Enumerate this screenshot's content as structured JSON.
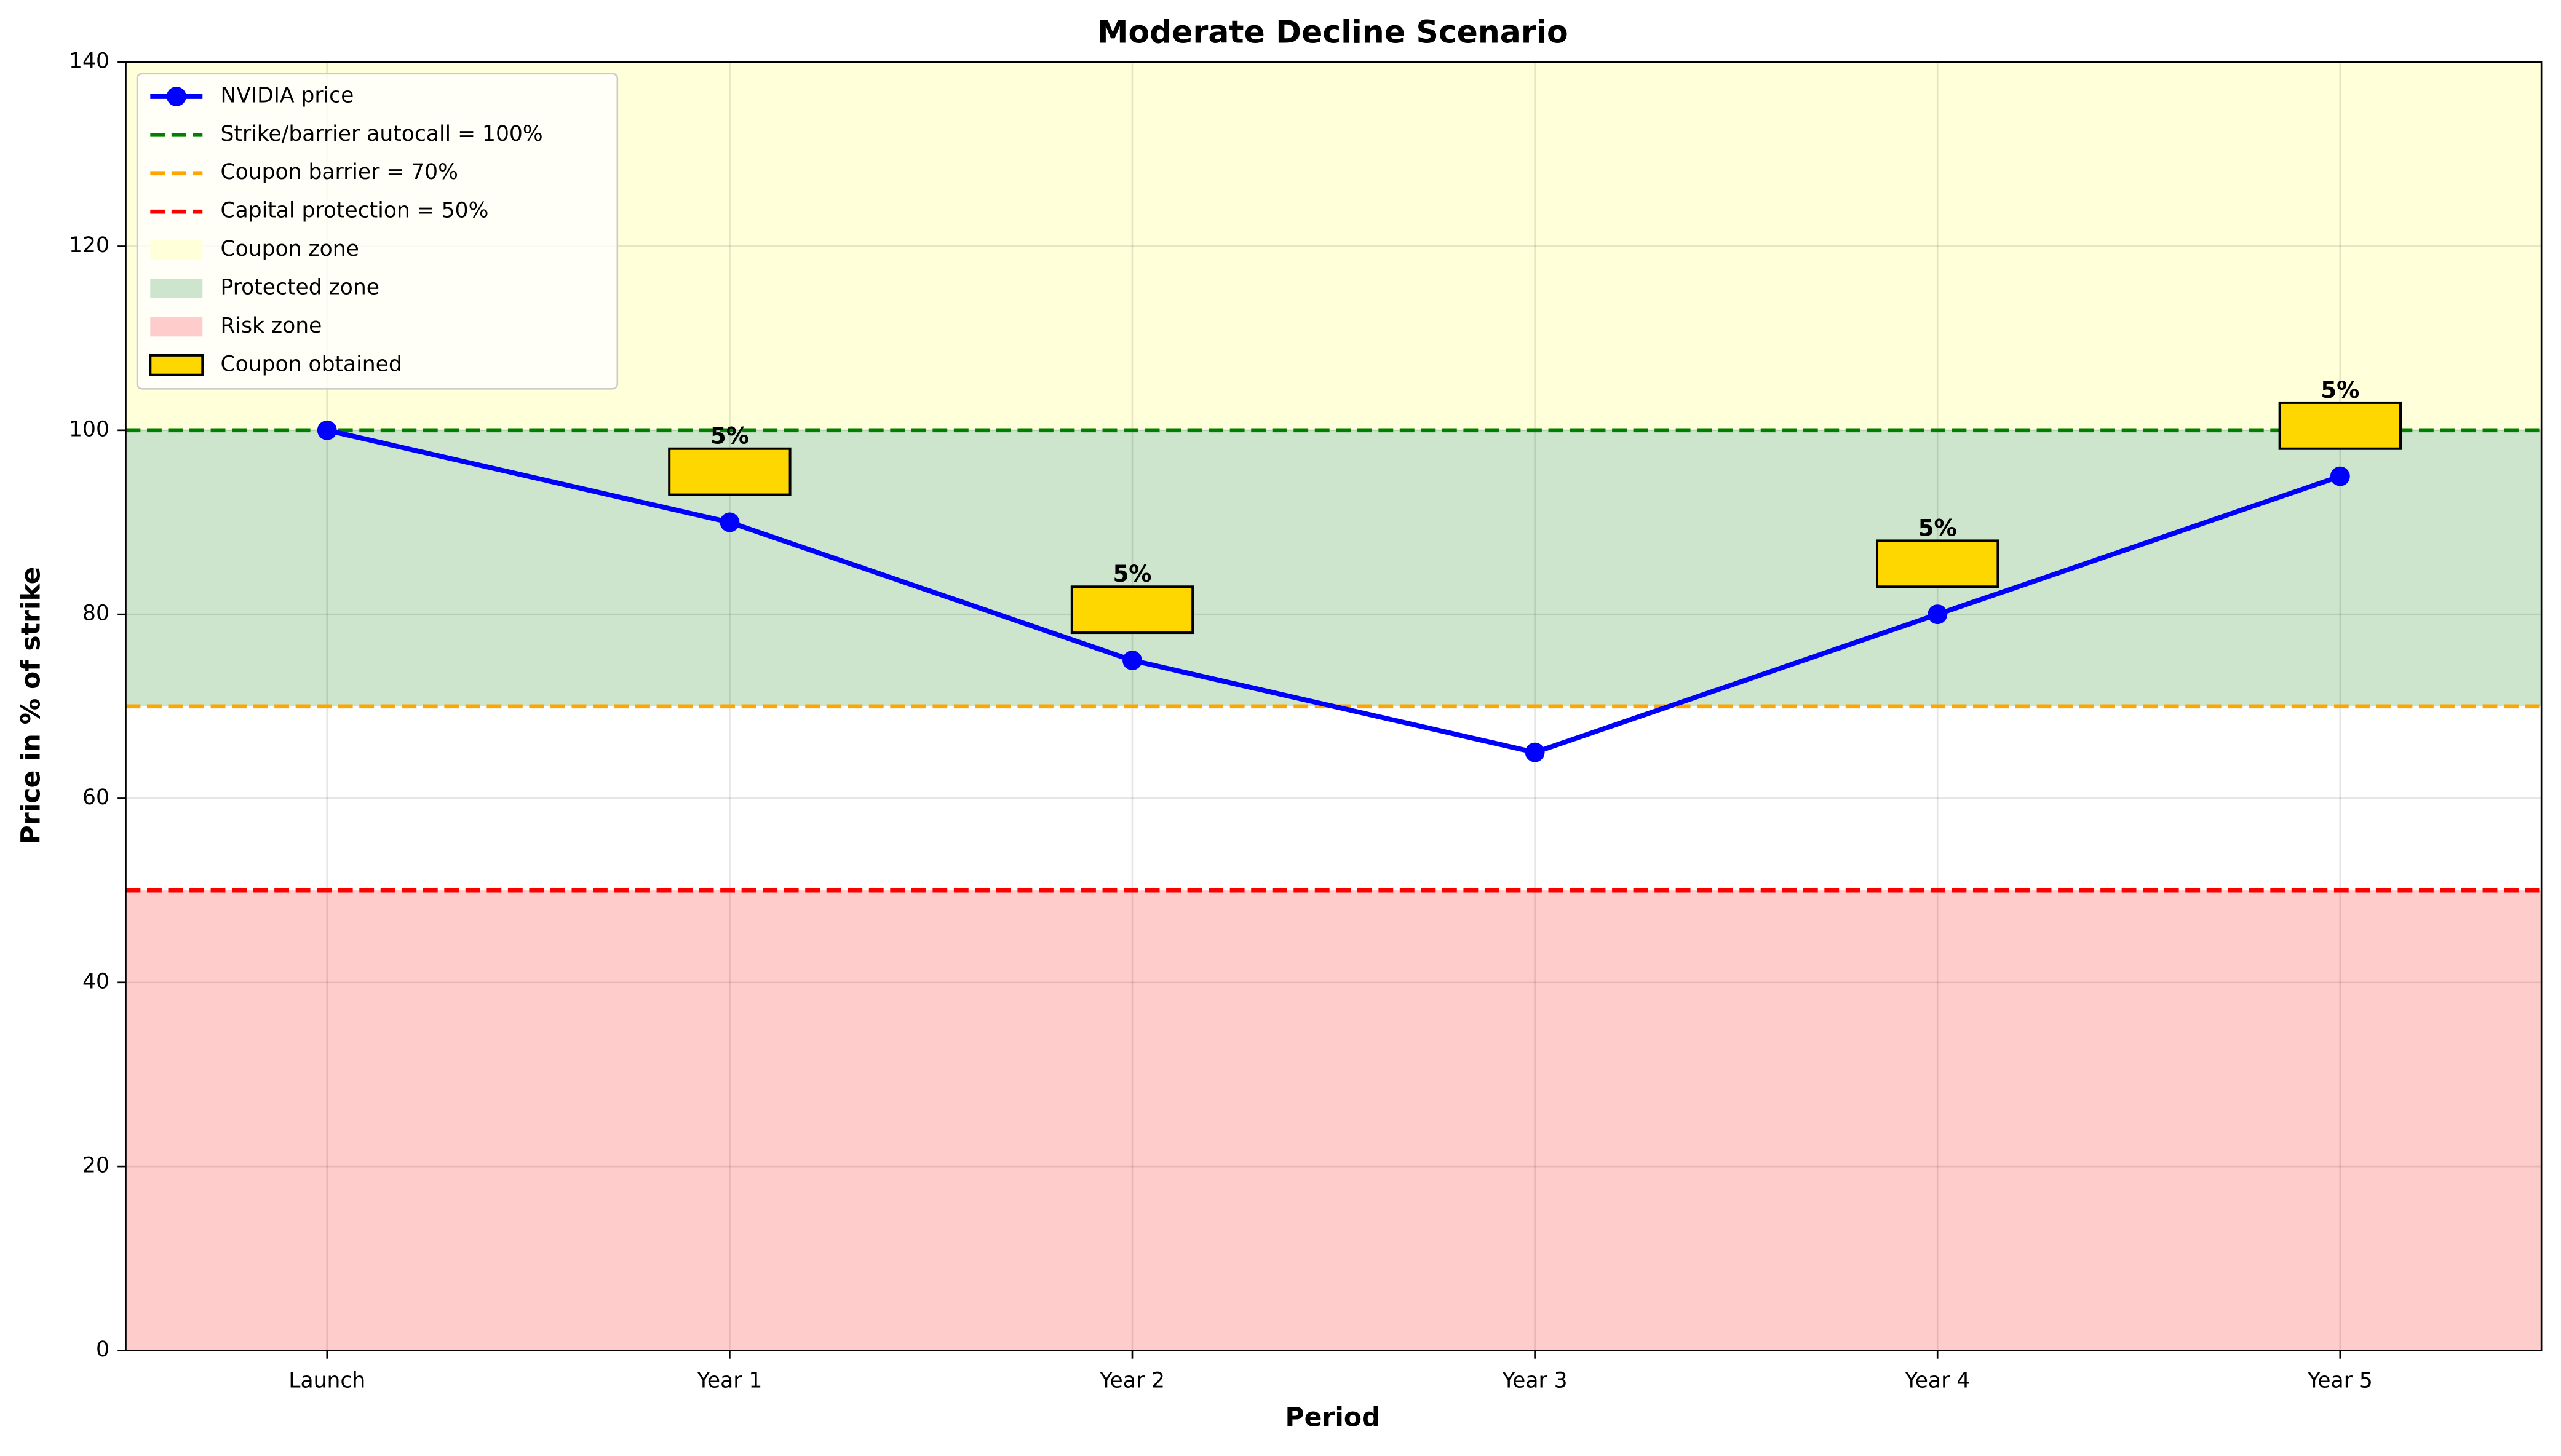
{
  "chart_data": {
    "type": "line",
    "title": "Moderate Decline Scenario",
    "x_label": "Period",
    "y_label": "Price in % of strike",
    "categories": [
      "Launch",
      "Year 1",
      "Year 2",
      "Year 3",
      "Year 4",
      "Year 5"
    ],
    "series": [
      {
        "name": "NVIDIA price",
        "color": "#0000ff",
        "values": [
          100,
          90,
          75,
          65,
          80,
          95
        ]
      }
    ],
    "coupons": {
      "name": "Coupon obtained",
      "color": "#ffd700",
      "values": [
        null,
        5,
        5,
        null,
        5,
        5
      ],
      "value_labels": [
        null,
        "5%",
        "5%",
        null,
        "5%",
        "5%"
      ]
    },
    "reference_lines": [
      {
        "name": "Strike/barrier autocall = 100%",
        "value": 100,
        "color": "#008000"
      },
      {
        "name": "Coupon barrier = 70%",
        "value": 70,
        "color": "#ffa500"
      },
      {
        "name": "Capital protection = 50%",
        "value": 50,
        "color": "#ff0000"
      }
    ],
    "zones": [
      {
        "name": "Coupon zone",
        "range": [
          100,
          140
        ],
        "color": "#ffffd9"
      },
      {
        "name": "Protected zone",
        "range": [
          70,
          100
        ],
        "color": "#cce5cc"
      },
      {
        "name": "Risk zone",
        "range": [
          0,
          50
        ],
        "color": "#ffcccc"
      }
    ],
    "ylim": [
      0,
      140
    ],
    "yticks": [
      0,
      20,
      40,
      60,
      80,
      100,
      120,
      140
    ],
    "grid": true,
    "legend": "upper left"
  }
}
